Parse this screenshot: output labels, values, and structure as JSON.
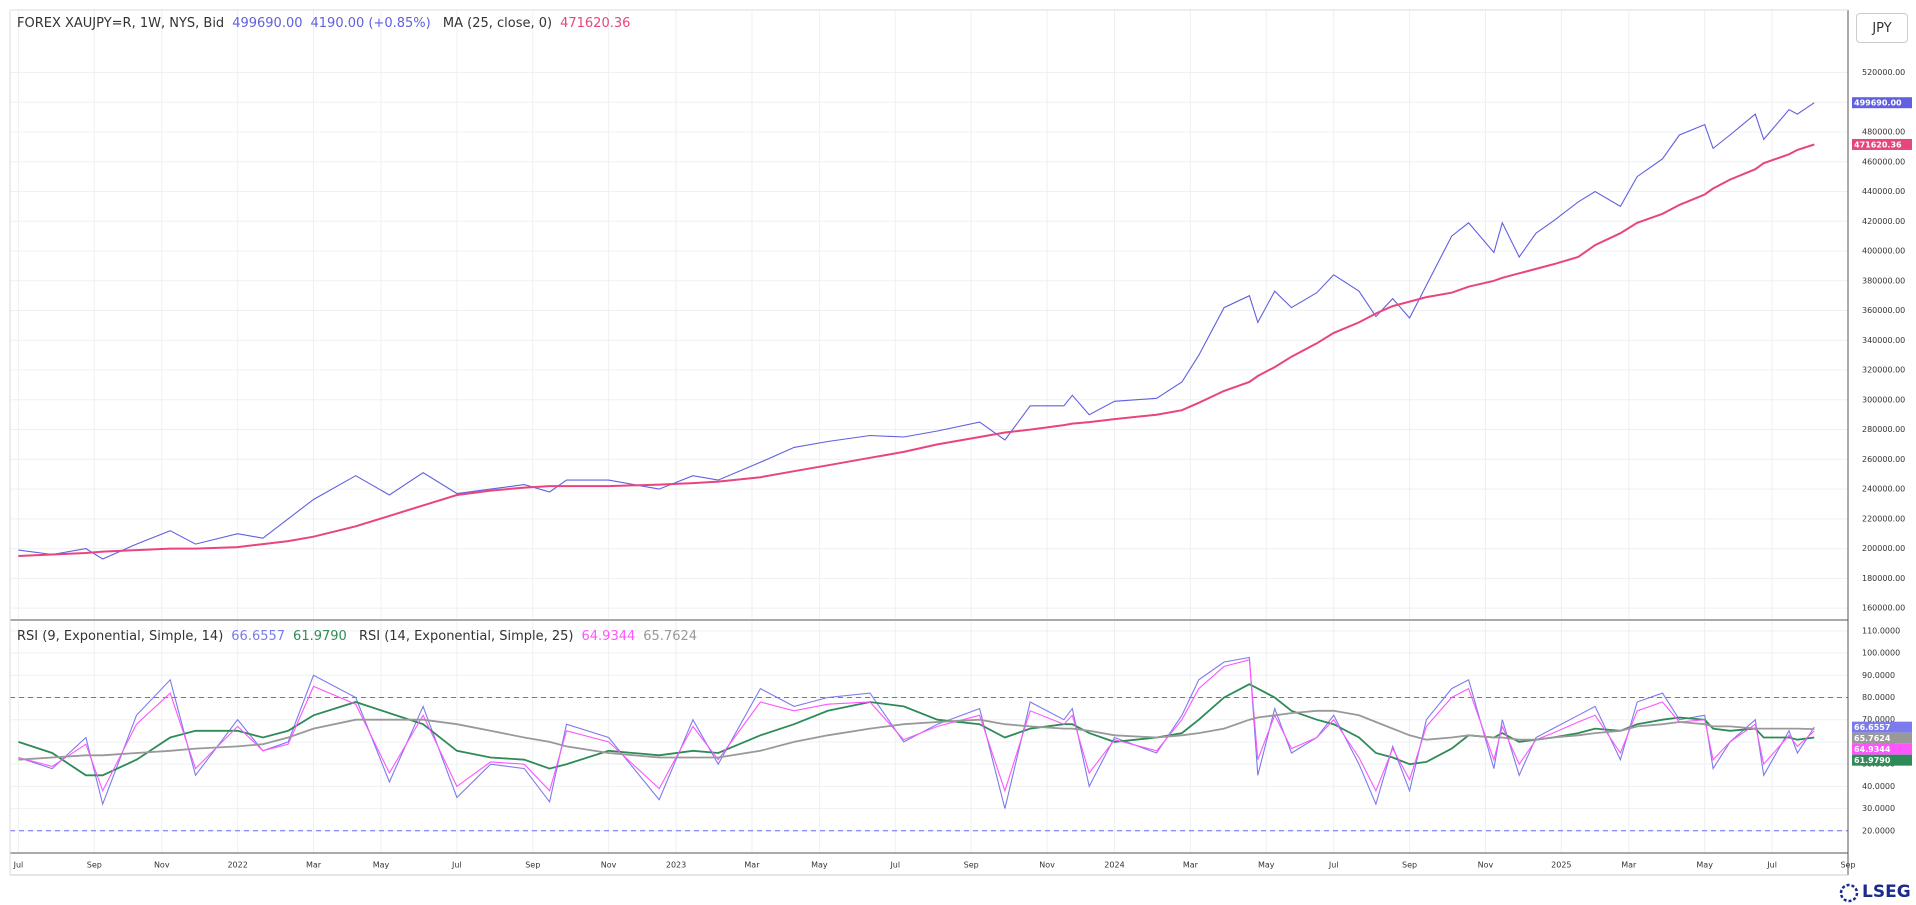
{
  "currency_button": "JPY",
  "brand": "LSEG",
  "chart_data": [
    {
      "type": "line",
      "title": "FOREX XAUJPY=R, 1W, NYS, Bid",
      "change": "4190.00 (+0.85%)",
      "x": [
        0,
        4,
        8,
        10,
        14,
        18,
        21,
        26,
        29,
        32,
        35,
        40,
        44,
        48,
        52,
        56,
        60,
        63,
        65,
        70,
        76,
        80,
        83,
        88,
        92,
        96,
        101,
        105,
        109,
        114,
        117,
        120,
        124,
        125,
        127,
        130,
        135,
        138,
        140,
        143,
        146,
        147,
        149,
        151,
        154,
        156,
        159,
        161,
        163,
        165,
        167,
        170,
        172,
        175,
        176,
        178,
        180,
        182,
        185,
        187,
        190,
        192,
        195,
        197,
        200,
        201,
        203,
        206,
        207,
        210,
        211,
        213
      ],
      "series": [
        {
          "color": "#6060e0",
          "last_label": "499690.00",
          "values": [
            199000,
            196000,
            200000,
            193000,
            203000,
            212000,
            203000,
            210000,
            207000,
            220000,
            233000,
            249000,
            236000,
            251000,
            237000,
            240000,
            243000,
            238000,
            246000,
            246000,
            240000,
            249000,
            246000,
            258000,
            268000,
            272000,
            276000,
            275000,
            279000,
            285000,
            273000,
            296000,
            296000,
            303000,
            290000,
            299000,
            301000,
            312000,
            330000,
            362000,
            370000,
            352000,
            373000,
            362000,
            372000,
            384000,
            373000,
            356000,
            368000,
            355000,
            377000,
            410000,
            419000,
            399000,
            419000,
            396000,
            412000,
            420000,
            433000,
            440000,
            430000,
            450000,
            462000,
            478000,
            485000,
            469000,
            478000,
            492000,
            475000,
            495000,
            492000,
            499690
          ]
        },
        {
          "name": "MA (25, close, 0)",
          "color": "#e8457e",
          "last_label": "471620.36",
          "values": [
            195000,
            196000,
            197000,
            198000,
            199000,
            200000,
            200000,
            201000,
            203000,
            205000,
            208000,
            215000,
            222000,
            229000,
            236000,
            239000,
            241000,
            242000,
            242000,
            242000,
            243000,
            244000,
            245000,
            248000,
            252000,
            256000,
            261000,
            265000,
            270000,
            275000,
            278000,
            280000,
            283000,
            284000,
            285000,
            287000,
            290000,
            293000,
            298000,
            306000,
            312000,
            316000,
            322000,
            329000,
            338000,
            345000,
            352000,
            358000,
            363000,
            366000,
            369000,
            372000,
            376000,
            380000,
            382000,
            385000,
            388000,
            391000,
            396000,
            404000,
            412000,
            419000,
            425000,
            431000,
            438000,
            442000,
            448000,
            455000,
            459000,
            465000,
            468000,
            471620.36
          ]
        }
      ],
      "ylim": [
        152000,
        562000
      ],
      "yticks": [
        {
          "value": 160000,
          "label": "160000.00"
        },
        {
          "value": 180000,
          "label": "180000.00"
        },
        {
          "value": 200000,
          "label": "200000.00"
        },
        {
          "value": 220000,
          "label": "220000.00"
        },
        {
          "value": 240000,
          "label": "240000.00"
        },
        {
          "value": 260000,
          "label": "260000.00"
        },
        {
          "value": 280000,
          "label": "280000.00"
        },
        {
          "value": 300000,
          "label": "300000.00"
        },
        {
          "value": 320000,
          "label": "320000.00"
        },
        {
          "value": 340000,
          "label": "340000.00"
        },
        {
          "value": 360000,
          "label": "360000.00"
        },
        {
          "value": 380000,
          "label": "380000.00"
        },
        {
          "value": 400000,
          "label": "400000.00"
        },
        {
          "value": 420000,
          "label": "420000.00"
        },
        {
          "value": 440000,
          "label": "440000.00"
        },
        {
          "value": 460000,
          "label": "460000.00"
        },
        {
          "value": 480000,
          "label": "480000.00"
        },
        {
          "value": 500000,
          "label": "500000.00"
        },
        {
          "value": 520000,
          "label": "520000.00"
        }
      ],
      "xlim": [
        -1,
        217
      ],
      "grid": true
    },
    {
      "type": "line",
      "x": [
        0,
        4,
        8,
        10,
        14,
        18,
        21,
        26,
        29,
        32,
        35,
        40,
        44,
        48,
        52,
        56,
        60,
        63,
        65,
        70,
        76,
        80,
        83,
        88,
        92,
        96,
        101,
        105,
        109,
        114,
        117,
        120,
        124,
        125,
        127,
        130,
        135,
        138,
        140,
        143,
        146,
        147,
        149,
        151,
        154,
        156,
        159,
        161,
        163,
        165,
        167,
        170,
        172,
        175,
        176,
        178,
        180,
        182,
        185,
        187,
        190,
        192,
        195,
        197,
        200,
        201,
        203,
        206,
        207,
        210,
        211,
        213
      ],
      "series": [
        {
          "name": "RSI (9, Exponential, Simple, 14)",
          "color": "#7b7bee",
          "last_label": "66.6557",
          "values": [
            53,
            48,
            62,
            32,
            72,
            88,
            45,
            70,
            56,
            60,
            90,
            80,
            42,
            76,
            35,
            50,
            48,
            33,
            68,
            62,
            34,
            70,
            50,
            84,
            76,
            80,
            82,
            60,
            68,
            75,
            30,
            78,
            70,
            75,
            40,
            62,
            55,
            72,
            88,
            96,
            98,
            45,
            75,
            55,
            62,
            72,
            50,
            32,
            58,
            38,
            70,
            84,
            88,
            48,
            70,
            45,
            62,
            66,
            72,
            76,
            52,
            78,
            82,
            70,
            72,
            48,
            60,
            70,
            45,
            65,
            55,
            66.6557
          ]
        },
        {
          "color": "#2e8b57",
          "last_label": "61.9790",
          "values": [
            60,
            55,
            45,
            45,
            52,
            62,
            65,
            65,
            62,
            65,
            72,
            78,
            73,
            68,
            56,
            53,
            52,
            48,
            50,
            56,
            54,
            56,
            55,
            63,
            68,
            74,
            78,
            76,
            70,
            68,
            62,
            66,
            68,
            68,
            64,
            60,
            62,
            64,
            70,
            80,
            86,
            84,
            80,
            74,
            70,
            68,
            62,
            55,
            53,
            50,
            51,
            57,
            63,
            62,
            64,
            60,
            61,
            62,
            64,
            66,
            65,
            68,
            70,
            71,
            70,
            66,
            65,
            66,
            62,
            62,
            61,
            61.979
          ]
        },
        {
          "name": "RSI (14, Exponential, Simple, 25)",
          "color": "#ff55ff",
          "last_label": "64.9344",
          "values": [
            53,
            49,
            59,
            38,
            68,
            82,
            48,
            67,
            56,
            59,
            85,
            77,
            46,
            72,
            40,
            51,
            50,
            38,
            65,
            60,
            39,
            67,
            52,
            78,
            74,
            77,
            78,
            61,
            67,
            72,
            38,
            74,
            68,
            72,
            46,
            61,
            56,
            70,
            84,
            94,
            97,
            52,
            72,
            57,
            62,
            70,
            53,
            38,
            57,
            43,
            67,
            80,
            84,
            52,
            67,
            50,
            61,
            64,
            69,
            72,
            55,
            74,
            78,
            69,
            70,
            52,
            60,
            68,
            50,
            63,
            58,
            64.9344
          ]
        },
        {
          "color": "#999999",
          "last_label": "65.7624",
          "values": [
            52,
            53,
            54,
            54,
            55,
            56,
            57,
            58,
            59,
            62,
            66,
            70,
            70,
            70,
            68,
            65,
            62,
            60,
            58,
            55,
            53,
            53,
            53,
            56,
            60,
            63,
            66,
            68,
            69,
            70,
            68,
            67,
            66,
            66,
            65,
            63,
            62,
            63,
            64,
            66,
            70,
            71,
            72,
            73,
            74,
            74,
            72,
            69,
            66,
            63,
            61,
            62,
            63,
            62,
            62,
            61,
            61,
            62,
            63,
            64,
            65,
            67,
            68,
            69,
            68,
            67,
            67,
            66,
            66,
            66,
            66,
            65.7624
          ]
        }
      ],
      "levels": [
        80,
        20
      ],
      "ylim": [
        10,
        114
      ],
      "yticks": [
        {
          "value": 20,
          "label": "20.0000"
        },
        {
          "value": 30,
          "label": "30.0000"
        },
        {
          "value": 40,
          "label": "40.0000"
        },
        {
          "value": 50,
          "label": "50.0000"
        },
        {
          "value": 60,
          "label": "60.0000"
        },
        {
          "value": 70,
          "label": "70.0000"
        },
        {
          "value": 80,
          "label": "80.0000"
        },
        {
          "value": 90,
          "label": "90.0000"
        },
        {
          "value": 100,
          "label": "100.0000"
        },
        {
          "value": 110,
          "label": "110.0000"
        }
      ],
      "xlim": [
        -1,
        217
      ],
      "xticks": [
        {
          "value": 0,
          "label": "Jul"
        },
        {
          "value": 9,
          "label": "Sep"
        },
        {
          "value": 17,
          "label": "Nov"
        },
        {
          "value": 26,
          "label": "2022"
        },
        {
          "value": 35,
          "label": "Mar"
        },
        {
          "value": 43,
          "label": "May"
        },
        {
          "value": 52,
          "label": "Jul"
        },
        {
          "value": 61,
          "label": "Sep"
        },
        {
          "value": 70,
          "label": "Nov"
        },
        {
          "value": 78,
          "label": "2023"
        },
        {
          "value": 87,
          "label": "Mar"
        },
        {
          "value": 95,
          "label": "May"
        },
        {
          "value": 104,
          "label": "Jul"
        },
        {
          "value": 113,
          "label": "Sep"
        },
        {
          "value": 122,
          "label": "Nov"
        },
        {
          "value": 130,
          "label": "2024"
        },
        {
          "value": 139,
          "label": "Mar"
        },
        {
          "value": 148,
          "label": "May"
        },
        {
          "value": 156,
          "label": "Jul"
        },
        {
          "value": 165,
          "label": "Sep"
        },
        {
          "value": 174,
          "label": "Nov"
        },
        {
          "value": 183,
          "label": "2025"
        },
        {
          "value": 191,
          "label": "Mar"
        },
        {
          "value": 200,
          "label": "May"
        },
        {
          "value": 208,
          "label": "Jul"
        },
        {
          "value": 217,
          "label": "Sep"
        }
      ],
      "grid": true
    }
  ]
}
